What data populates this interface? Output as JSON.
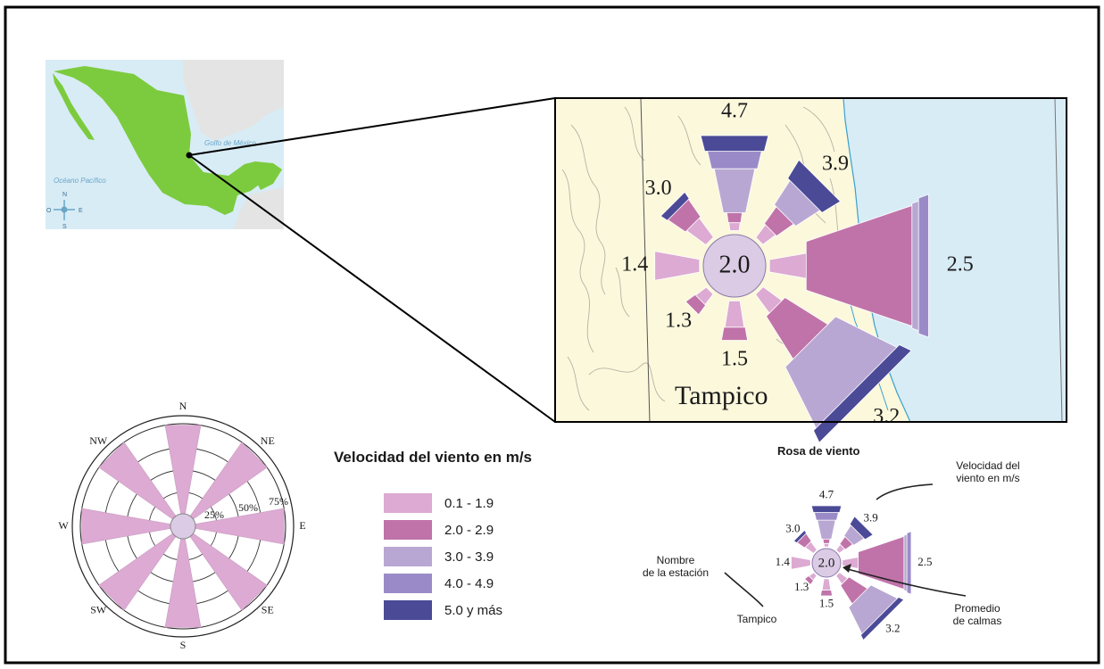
{
  "colors": {
    "c1": "#dcaad2",
    "c2": "#c073a9",
    "c3": "#b9a7d3",
    "c4": "#9a8bc8",
    "c5": "#4b4a97",
    "land": "#fbf8dc",
    "sea": "#d8ecf6",
    "mexico": "#7ccb3e",
    "calm": "#dbcbe5"
  },
  "inset_map": {
    "pacific_label": "Océano Pacífico",
    "gulf_label": "Golfo de México",
    "compass": {
      "n": "N",
      "s": "S",
      "e": "E",
      "w": "O"
    }
  },
  "zoom_map": {
    "station_name": "Tampico",
    "calm_label": "2.0",
    "labels": {
      "N": "4.7",
      "NE": "3.9",
      "E": "2.5",
      "SE": "3.2",
      "S": "1.5",
      "SW": "1.3",
      "W": "1.4",
      "NW": "3.0"
    }
  },
  "reference_rose": {
    "directions": {
      "N": "N",
      "NE": "NE",
      "E": "E",
      "SE": "SE",
      "S": "S",
      "SW": "SW",
      "W": "W",
      "NW": "NW"
    },
    "ring_labels": [
      "25%",
      "50%",
      "75%"
    ]
  },
  "legend": {
    "title": "Velocidad del viento en m/s",
    "items": [
      {
        "color_key": "c1",
        "label": "0.1 - 1.9"
      },
      {
        "color_key": "c2",
        "label": "2.0 - 2.9"
      },
      {
        "color_key": "c3",
        "label": "3.0 - 3.9"
      },
      {
        "color_key": "c4",
        "label": "4.0 - 4.9"
      },
      {
        "color_key": "c5",
        "label": "5.0 y más"
      }
    ]
  },
  "example_rose": {
    "title": "Rosa de viento",
    "annotation_speed": "Velocidad del\nviento en m/s",
    "annotation_station": "Nombre\nde la estación",
    "annotation_calm": "Promedio\nde calmas",
    "station_name": "Tampico",
    "calm_label": "2.0",
    "labels": {
      "N": "4.7",
      "NE": "3.9",
      "E": "2.5",
      "SE": "3.2",
      "S": "1.5",
      "SW": "1.3",
      "W": "1.4",
      "NW": "3.0"
    }
  }
}
